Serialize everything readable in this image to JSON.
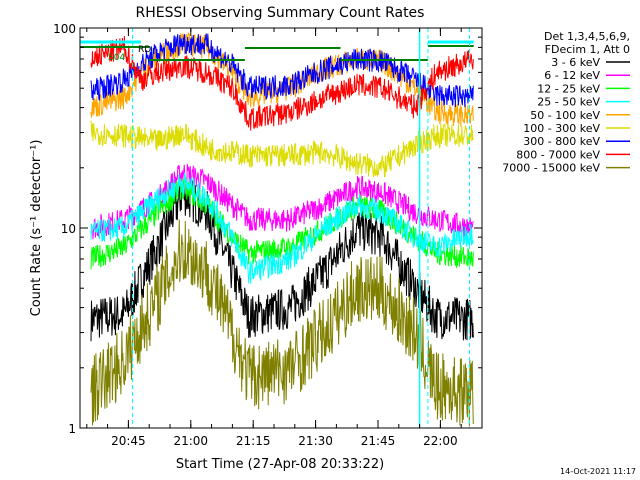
{
  "chart_data": {
    "type": "line",
    "title": "RHESSI Observing Summary Count Rates",
    "xlabel": "Start Time (27-Apr-08 20:33:22)",
    "ylabel": "Count Rate (s⁻¹ detector⁻¹)",
    "yscale": "log",
    "ylim": [
      1,
      100
    ],
    "xlim": [
      "20:33:22",
      "22:10:00"
    ],
    "x_ticks": [
      "20:45",
      "21:00",
      "21:15",
      "21:30",
      "21:45",
      "22:00"
    ],
    "y_ticks": [
      "1",
      "10",
      "100"
    ],
    "grid": false,
    "legend_position": "top-right",
    "legend_header": [
      "Det 1,3,4,5,6,9,",
      "FDecim 1, Att 0"
    ],
    "footer_date": "14-Oct-2021 11:17",
    "annotations": [
      "RD",
      "S04"
    ],
    "series": [
      {
        "name": "3 - 6 keV",
        "color": "#000000",
        "x": [
          "20:36",
          "20:44",
          "20:52",
          "20:58",
          "21:04",
          "21:10",
          "21:14",
          "21:24",
          "21:32",
          "21:40",
          "21:46",
          "21:54",
          "21:59",
          "22:08"
        ],
        "values": [
          3.5,
          3.7,
          8,
          15,
          12,
          6,
          3.6,
          4,
          6,
          10,
          9,
          5,
          3.6,
          3.5
        ]
      },
      {
        "name": "6 - 12 keV",
        "color": "#ff00ff",
        "x": [
          "20:36",
          "20:44",
          "20:52",
          "20:58",
          "21:04",
          "21:10",
          "21:14",
          "21:24",
          "21:32",
          "21:40",
          "21:46",
          "21:54",
          "21:59",
          "22:08"
        ],
        "values": [
          10,
          11,
          14,
          19,
          17,
          13,
          11,
          11,
          13,
          16,
          15,
          12,
          11,
          10
        ]
      },
      {
        "name": "12 - 25 keV",
        "color": "#00ff00",
        "x": [
          "20:36",
          "20:44",
          "20:52",
          "20:58",
          "21:04",
          "21:10",
          "21:14",
          "21:24",
          "21:32",
          "21:40",
          "21:46",
          "21:54",
          "21:59",
          "22:08"
        ],
        "values": [
          7,
          8,
          12,
          16,
          13,
          9,
          7.5,
          8,
          10,
          13,
          12,
          9,
          7.5,
          7
        ]
      },
      {
        "name": "25 - 50 keV",
        "color": "#00ffff",
        "x": [
          "20:36",
          "20:44",
          "20:52",
          "20:58",
          "21:04",
          "21:10",
          "21:14",
          "21:24",
          "21:32",
          "21:40",
          "21:46",
          "21:54",
          "21:59",
          "22:08"
        ],
        "values": [
          9.5,
          10,
          14,
          17,
          14,
          9,
          6,
          7,
          10,
          13,
          12,
          9,
          8,
          9.5
        ]
      },
      {
        "name": "50 - 100 keV",
        "color": "#ffa500",
        "x": [
          "20:36",
          "20:44",
          "20:48",
          "20:52",
          "20:58",
          "21:04",
          "21:10",
          "21:14",
          "21:24",
          "21:32",
          "21:40",
          "21:46",
          "21:54",
          "21:59",
          "22:08"
        ],
        "values": [
          40,
          45,
          60,
          72,
          84,
          80,
          60,
          45,
          50,
          62,
          70,
          68,
          50,
          38,
          36
        ]
      },
      {
        "name": "100 - 300 keV",
        "color": "#dcdc00",
        "x": [
          "20:36",
          "20:44",
          "20:52",
          "20:58",
          "21:04",
          "21:10",
          "21:14",
          "21:24",
          "21:32",
          "21:40",
          "21:46",
          "21:54",
          "21:59",
          "22:08"
        ],
        "values": [
          30,
          29,
          27,
          30,
          25,
          24,
          23,
          23,
          24,
          21,
          20,
          26,
          29,
          29
        ]
      },
      {
        "name": "300 - 800 keV",
        "color": "#0000ff",
        "x": [
          "20:36",
          "20:44",
          "20:48",
          "20:52",
          "20:58",
          "21:04",
          "21:10",
          "21:14",
          "21:24",
          "21:32",
          "21:40",
          "21:46",
          "21:54",
          "21:59",
          "22:08"
        ],
        "values": [
          48,
          55,
          65,
          75,
          85,
          82,
          65,
          50,
          52,
          62,
          70,
          68,
          55,
          46,
          45
        ]
      },
      {
        "name": "800 - 7000 keV",
        "color": "#ff0000",
        "x": [
          "20:36",
          "20:44",
          "20:48",
          "20:52",
          "20:58",
          "21:04",
          "21:10",
          "21:14",
          "21:24",
          "21:32",
          "21:40",
          "21:46",
          "21:54",
          "21:59",
          "22:08"
        ],
        "values": [
          70,
          80,
          55,
          60,
          65,
          60,
          50,
          35,
          38,
          45,
          52,
          50,
          40,
          60,
          70
        ]
      },
      {
        "name": "7000 - 15000 keV",
        "color": "#808000",
        "x": [
          "20:36",
          "20:44",
          "20:52",
          "20:58",
          "21:04",
          "21:10",
          "21:14",
          "21:24",
          "21:32",
          "21:40",
          "21:46",
          "21:54",
          "21:59",
          "22:08"
        ],
        "values": [
          1.5,
          2.2,
          4.5,
          8,
          6,
          3,
          1.8,
          2,
          3,
          5,
          4.8,
          3,
          1.6,
          1.5
        ]
      }
    ]
  },
  "colors": {
    "background": "#ffffff",
    "axis": "#000000",
    "flag_cyan": "#00ffff",
    "flag_green": "#008000"
  }
}
